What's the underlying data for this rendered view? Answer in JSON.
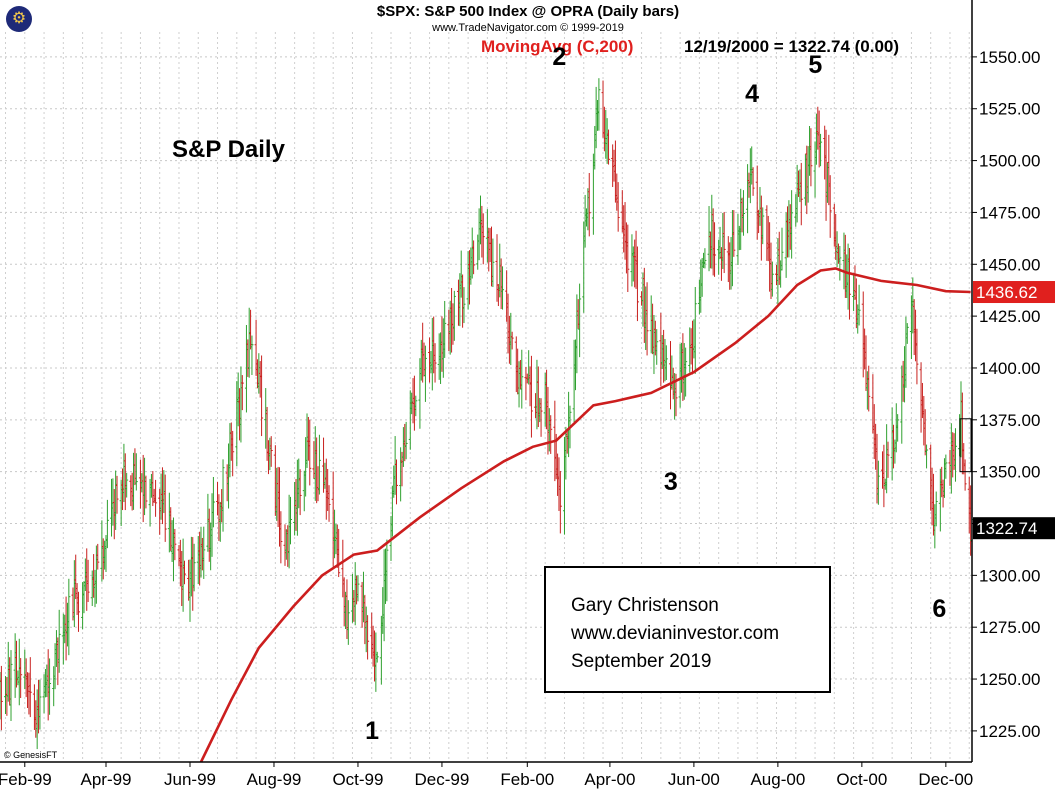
{
  "header": {
    "title": "$SPX:  S&P 500 Index @ OPRA  (Daily bars)",
    "subtitle": "www.TradeNavigator.com © 1999-2019",
    "ma_legend": "MovingAvg (C,200)",
    "last_legend": "12/19/2000 = 1322.74 (0.00)",
    "chart_label": "S&P Daily",
    "copyright": "© GenesisFT",
    "logo_icon": "globe-logo-icon"
  },
  "note": {
    "line1": "Gary Christenson",
    "line2": "www.devianinvestor.com",
    "line3": "September 2019"
  },
  "wave_labels": [
    {
      "label": "1",
      "date": "1999-10-12",
      "price": 1224
    },
    {
      "label": "2",
      "date": "2000-02-25",
      "price": 1549
    },
    {
      "label": "3",
      "date": "2000-05-16",
      "price": 1344
    },
    {
      "label": "4",
      "date": "2000-07-14",
      "price": 1531
    },
    {
      "label": "5",
      "date": "2000-08-29",
      "price": 1545
    },
    {
      "label": "6",
      "date": "2000-11-27",
      "price": 1283
    }
  ],
  "chart_data": {
    "type": "ohlc",
    "title": "$SPX:  S&P 500 Index @ OPRA  (Daily bars)",
    "x_ticks": [
      "Feb-99",
      "Apr-99",
      "Jun-99",
      "Aug-99",
      "Oct-99",
      "Dec-99",
      "Feb-00",
      "Apr-00",
      "Jun-00",
      "Aug-00",
      "Oct-00",
      "Dec-00"
    ],
    "x_tick_dates": [
      "1999-02-01",
      "1999-04-01",
      "1999-06-01",
      "1999-08-01",
      "1999-10-01",
      "1999-12-01",
      "2000-02-01",
      "2000-04-01",
      "2000-06-01",
      "2000-08-01",
      "2000-10-01",
      "2000-12-01"
    ],
    "x_range": [
      "1999-01-14",
      "2000-12-20"
    ],
    "y_ticks": [
      "1225.00",
      "1250.00",
      "1275.00",
      "1300.00",
      "1325.00",
      "1350.00",
      "1375.00",
      "1400.00",
      "1425.00",
      "1450.00",
      "1475.00",
      "1500.00",
      "1525.00",
      "1550.00"
    ],
    "y_range": [
      1210,
      1562
    ],
    "grid": true,
    "price_axis": "right",
    "colors": {
      "up": "#2ea02e",
      "down": "#c8201e",
      "moving_average": "#cc1e1e",
      "ma_badge": "#e0201e",
      "last_badge": "#000000"
    },
    "price_anchors": [
      [
        "1999-01-14",
        1240
      ],
      [
        "1999-01-26",
        1255
      ],
      [
        "1999-02-09",
        1230
      ],
      [
        "1999-03-05",
        1285
      ],
      [
        "1999-03-25",
        1300
      ],
      [
        "1999-04-12",
        1350
      ],
      [
        "1999-04-23",
        1345
      ],
      [
        "1999-05-10",
        1340
      ],
      [
        "1999-05-26",
        1295
      ],
      [
        "1999-06-10",
        1310
      ],
      [
        "1999-06-24",
        1340
      ],
      [
        "1999-07-16",
        1415
      ],
      [
        "1999-08-09",
        1310
      ],
      [
        "1999-08-25",
        1360
      ],
      [
        "1999-09-10",
        1340
      ],
      [
        "1999-09-23",
        1280
      ],
      [
        "1999-10-01",
        1295
      ],
      [
        "1999-10-15",
        1255
      ],
      [
        "1999-10-27",
        1345
      ],
      [
        "1999-11-15",
        1400
      ],
      [
        "1999-12-07",
        1420
      ],
      [
        "1999-12-30",
        1465
      ],
      [
        "2000-01-12",
        1440
      ],
      [
        "2000-01-26",
        1390
      ],
      [
        "2000-02-14",
        1385
      ],
      [
        "2000-02-25",
        1340
      ],
      [
        "2000-03-24",
        1530
      ],
      [
        "2000-04-12",
        1460
      ],
      [
        "2000-04-26",
        1430
      ],
      [
        "2000-05-16",
        1390
      ],
      [
        "2000-05-30",
        1410
      ],
      [
        "2000-06-12",
        1465
      ],
      [
        "2000-06-28",
        1455
      ],
      [
        "2000-07-14",
        1495
      ],
      [
        "2000-07-28",
        1440
      ],
      [
        "2000-08-14",
        1480
      ],
      [
        "2000-08-31",
        1510
      ],
      [
        "2000-09-15",
        1455
      ],
      [
        "2000-09-28",
        1430
      ],
      [
        "2000-10-13",
        1340
      ],
      [
        "2000-10-27",
        1370
      ],
      [
        "2000-11-06",
        1430
      ],
      [
        "2000-11-22",
        1330
      ],
      [
        "2000-12-05",
        1360
      ],
      [
        "2000-12-12",
        1375
      ],
      [
        "2000-12-19",
        1322
      ]
    ],
    "moving_average": {
      "name": "MovingAvg (C,200)",
      "points": [
        [
          "1999-06-09",
          1210
        ],
        [
          "1999-07-01",
          1240
        ],
        [
          "1999-07-21",
          1265
        ],
        [
          "1999-08-15",
          1285
        ],
        [
          "1999-09-05",
          1300
        ],
        [
          "1999-09-28",
          1310
        ],
        [
          "1999-10-15",
          1312
        ],
        [
          "1999-11-15",
          1328
        ],
        [
          "1999-12-15",
          1342
        ],
        [
          "2000-01-15",
          1355
        ],
        [
          "2000-02-05",
          1362
        ],
        [
          "2000-02-22",
          1365
        ],
        [
          "2000-03-20",
          1382
        ],
        [
          "2000-04-05",
          1384
        ],
        [
          "2000-05-01",
          1388
        ],
        [
          "2000-06-01",
          1398
        ],
        [
          "2000-07-01",
          1412
        ],
        [
          "2000-07-25",
          1425
        ],
        [
          "2000-08-15",
          1440
        ],
        [
          "2000-09-01",
          1447
        ],
        [
          "2000-09-12",
          1448
        ],
        [
          "2000-09-20",
          1446
        ],
        [
          "2000-10-15",
          1442
        ],
        [
          "2000-11-10",
          1440
        ],
        [
          "2000-12-01",
          1437
        ],
        [
          "2000-12-19",
          1436.62
        ]
      ]
    },
    "badges": [
      {
        "label": "1436.62",
        "price": 1436.62,
        "color": "#e0201e"
      },
      {
        "label": "1322.74",
        "price": 1322.74,
        "color": "#000000"
      }
    ],
    "last_value": 1322.74,
    "ma_last_value": 1436.62
  }
}
